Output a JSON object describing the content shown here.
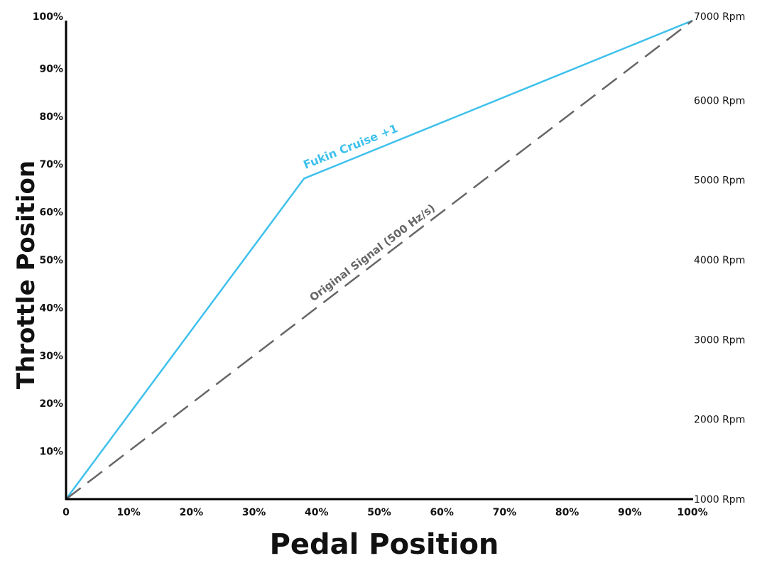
{
  "chart_data": {
    "type": "line",
    "xlabel": "Pedal Position",
    "ylabel": "Throttle Position",
    "xlim": [
      0,
      100
    ],
    "ylim": [
      0,
      100
    ],
    "y2lim": [
      1000,
      7000
    ],
    "grid": false,
    "x_ticks": [
      "0",
      "10%",
      "20%",
      "30%",
      "40%",
      "50%",
      "60%",
      "70%",
      "80%",
      "90%",
      "100%"
    ],
    "y_ticks": [
      "10%",
      "20%",
      "30%",
      "40%",
      "50%",
      "60%",
      "70%",
      "80%",
      "90%",
      "100%"
    ],
    "y2_ticks": [
      "1000 Rpm",
      "2000 Rpm",
      "3000 Rpm",
      "4000 Rpm",
      "5000 Rpm",
      "6000 Rpm",
      "7000 Rpm"
    ],
    "series": [
      {
        "name": "Fukin Cruise +1",
        "color": "#3ec1ec",
        "style": "solid",
        "x": [
          0,
          38,
          100
        ],
        "y": [
          0,
          67,
          100
        ]
      },
      {
        "name": "Original Signal (500 Hz/s)",
        "color": "#666666",
        "style": "dashed",
        "x": [
          0,
          100
        ],
        "y": [
          0,
          100
        ]
      }
    ]
  }
}
